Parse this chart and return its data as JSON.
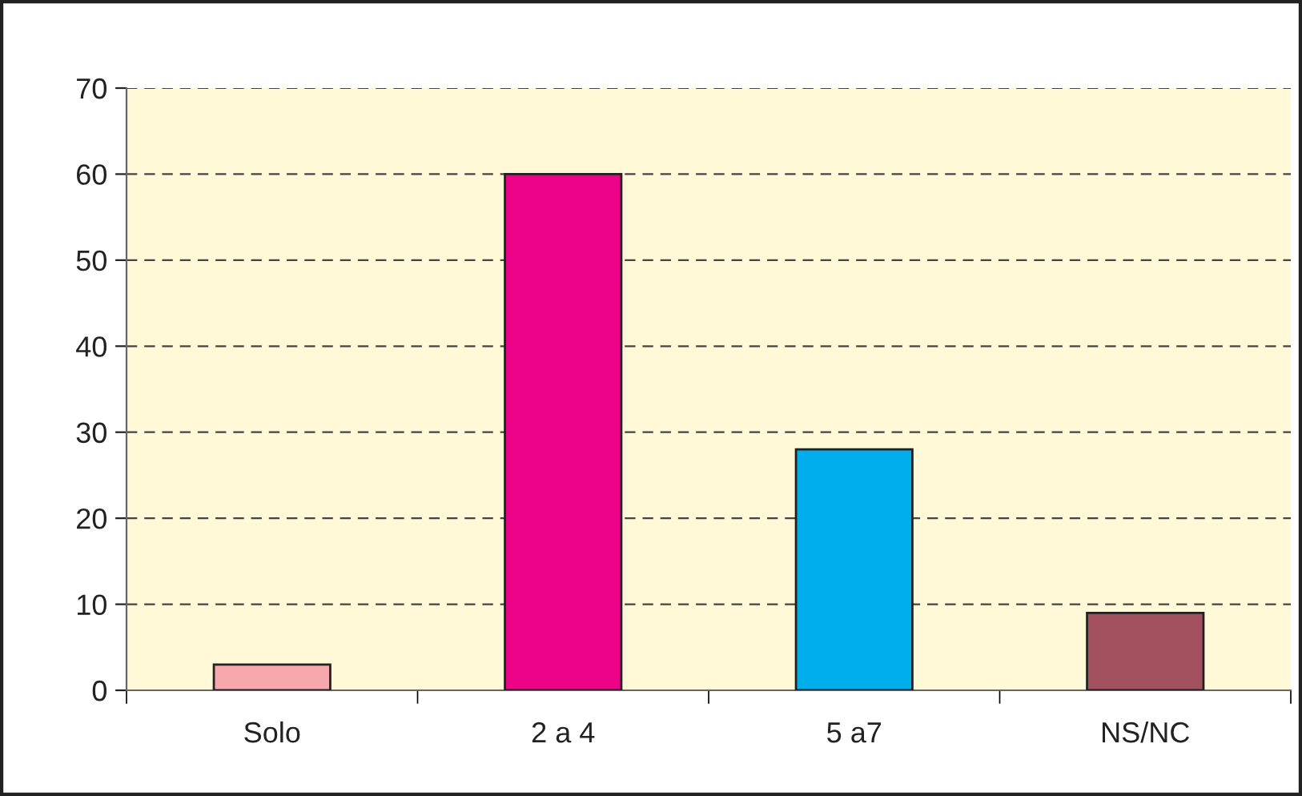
{
  "chart_data": {
    "type": "bar",
    "categories": [
      "Solo",
      "2 a 4",
      "5 a7",
      "NS/NC"
    ],
    "values": [
      3,
      60,
      28,
      9
    ],
    "colors": [
      "#f7a8ac",
      "#ec0387",
      "#00aeeb",
      "#a3515f"
    ],
    "ylim": [
      0,
      70
    ],
    "yticks": [
      0,
      10,
      20,
      30,
      40,
      50,
      60,
      70
    ],
    "grid": "y"
  }
}
